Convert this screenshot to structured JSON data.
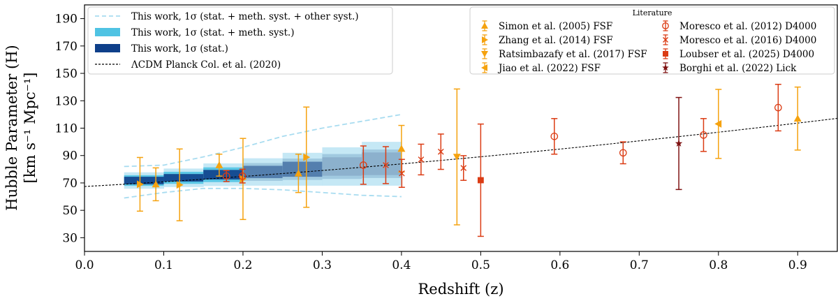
{
  "chart_data": {
    "type": "scatter",
    "xlabel": "Redshift (z)",
    "ylabel": [
      "Hubble Parameter (H)",
      "[km s⁻¹ Mpc⁻¹]"
    ],
    "xlim": [
      0.0,
      0.95
    ],
    "ylim": [
      20,
      200
    ],
    "xticks": [
      "0.0",
      "0.1",
      "0.2",
      "0.3",
      "0.4",
      "0.5",
      "0.6",
      "0.7",
      "0.8",
      "0.9"
    ],
    "xtick_values": [
      0.0,
      0.1,
      0.2,
      0.3,
      0.4,
      0.5,
      0.6,
      0.7,
      0.8,
      0.9
    ],
    "yticks": [
      "30",
      "50",
      "70",
      "90",
      "110",
      "130",
      "150",
      "170",
      "190"
    ],
    "ytick_values": [
      30,
      50,
      70,
      90,
      110,
      130,
      150,
      170,
      190
    ],
    "bands": {
      "z": [
        0.05,
        0.1,
        0.15,
        0.2,
        0.25,
        0.3,
        0.35,
        0.4
      ],
      "center": [
        71,
        72.5,
        75,
        77,
        79,
        81,
        83,
        85
      ],
      "stat_halfwidth": [
        3,
        2.5,
        3,
        4,
        5,
        6,
        7.5,
        9
      ],
      "meth_halfwidth": [
        6,
        6,
        7.5,
        9,
        11,
        13,
        15,
        17
      ],
      "other_upper": [
        82,
        83,
        89,
        96,
        104,
        110,
        115,
        120
      ],
      "other_lower": [
        59,
        63,
        66,
        66,
        65,
        63,
        61,
        60
      ]
    },
    "lcdm": {
      "H0": 67.4,
      "Om": 0.315
    },
    "series": [
      {
        "name": "Simon et al. (2005) FSF",
        "marker": "triangle-up",
        "color": "#f5a20f",
        "filled": true,
        "points": [
          {
            "x": 0.09,
            "y": 69,
            "lo": 12,
            "hi": 12
          },
          {
            "x": 0.17,
            "y": 83,
            "lo": 8,
            "hi": 8
          },
          {
            "x": 0.27,
            "y": 77,
            "lo": 14,
            "hi": 14
          },
          {
            "x": 0.4,
            "y": 95,
            "lo": 17,
            "hi": 17
          },
          {
            "x": 0.9,
            "y": 117,
            "lo": 23,
            "hi": 23
          }
        ]
      },
      {
        "name": "Zhang et al. (2014) FSF",
        "marker": "triangle-right",
        "color": "#f5a20f",
        "filled": true,
        "points": [
          {
            "x": 0.07,
            "y": 69,
            "lo": 19.6,
            "hi": 19.6
          },
          {
            "x": 0.12,
            "y": 68.6,
            "lo": 26.2,
            "hi": 26.2
          },
          {
            "x": 0.2,
            "y": 72.9,
            "lo": 29.6,
            "hi": 29.6
          },
          {
            "x": 0.28,
            "y": 88.8,
            "lo": 36.6,
            "hi": 36.6
          }
        ]
      },
      {
        "name": "Ratsimbazafy et al. (2017) FSF",
        "marker": "triangle-down",
        "color": "#f5a20f",
        "filled": true,
        "points": [
          {
            "x": 0.47,
            "y": 89,
            "lo": 49.6,
            "hi": 49.6
          }
        ]
      },
      {
        "name": "Jiao et al. (2022) FSF",
        "marker": "triangle-left",
        "color": "#f5a20f",
        "filled": true,
        "points": [
          {
            "x": 0.8,
            "y": 113.1,
            "lo": 25.2,
            "hi": 25.2
          }
        ]
      },
      {
        "name": "Moresco et al. (2012) D4000",
        "marker": "circle-open",
        "color": "#db3c14",
        "filled": false,
        "points": [
          {
            "x": 0.1791,
            "y": 75,
            "lo": 4,
            "hi": 4
          },
          {
            "x": 0.1993,
            "y": 75,
            "lo": 5,
            "hi": 5
          },
          {
            "x": 0.3519,
            "y": 83,
            "lo": 14,
            "hi": 14
          },
          {
            "x": 0.5929,
            "y": 104,
            "lo": 13,
            "hi": 13
          },
          {
            "x": 0.6797,
            "y": 92,
            "lo": 8,
            "hi": 8
          },
          {
            "x": 0.7812,
            "y": 105,
            "lo": 12,
            "hi": 12
          },
          {
            "x": 0.8754,
            "y": 125,
            "lo": 17,
            "hi": 17
          }
        ]
      },
      {
        "name": "Moresco et al. (2016) D4000",
        "marker": "x",
        "color": "#db3c14",
        "filled": false,
        "points": [
          {
            "x": 0.3802,
            "y": 83,
            "lo": 13.5,
            "hi": 13.5
          },
          {
            "x": 0.4004,
            "y": 77,
            "lo": 10.2,
            "hi": 10.2
          },
          {
            "x": 0.4247,
            "y": 87.1,
            "lo": 11.2,
            "hi": 11.2
          },
          {
            "x": 0.4497,
            "y": 92.8,
            "lo": 12.9,
            "hi": 12.9
          },
          {
            "x": 0.4783,
            "y": 80.9,
            "lo": 9,
            "hi": 9
          }
        ]
      },
      {
        "name": "Loubser et al. (2025) D4000",
        "marker": "square",
        "color": "#db3c14",
        "filled": true,
        "points": [
          {
            "x": 0.5,
            "y": 72,
            "lo": 41,
            "hi": 41
          }
        ]
      },
      {
        "name": "Borghi et al. (2022) Lick",
        "marker": "star",
        "color": "#7f1313",
        "filled": true,
        "points": [
          {
            "x": 0.75,
            "y": 98.8,
            "lo": 33.6,
            "hi": 33.6
          }
        ]
      }
    ],
    "legend_left": {
      "placement": "upper-left",
      "entries": [
        {
          "label": "This work, 1σ (stat. + meth. syst. + other syst.)",
          "style": "dashed-line",
          "color": "#a8dcf0"
        },
        {
          "label": "This work, 1σ (stat. + meth. syst.)",
          "style": "patch",
          "color": "#4fc3e3"
        },
        {
          "label": "This work, 1σ (stat.)",
          "style": "patch",
          "color": "#0e3f8a"
        },
        {
          "label": "ΛCDM Planck Col. et al. (2020)",
          "style": "dotted-line",
          "color": "#000000"
        }
      ]
    },
    "legend_right": {
      "placement": "upper-right",
      "title": "Literature"
    }
  }
}
